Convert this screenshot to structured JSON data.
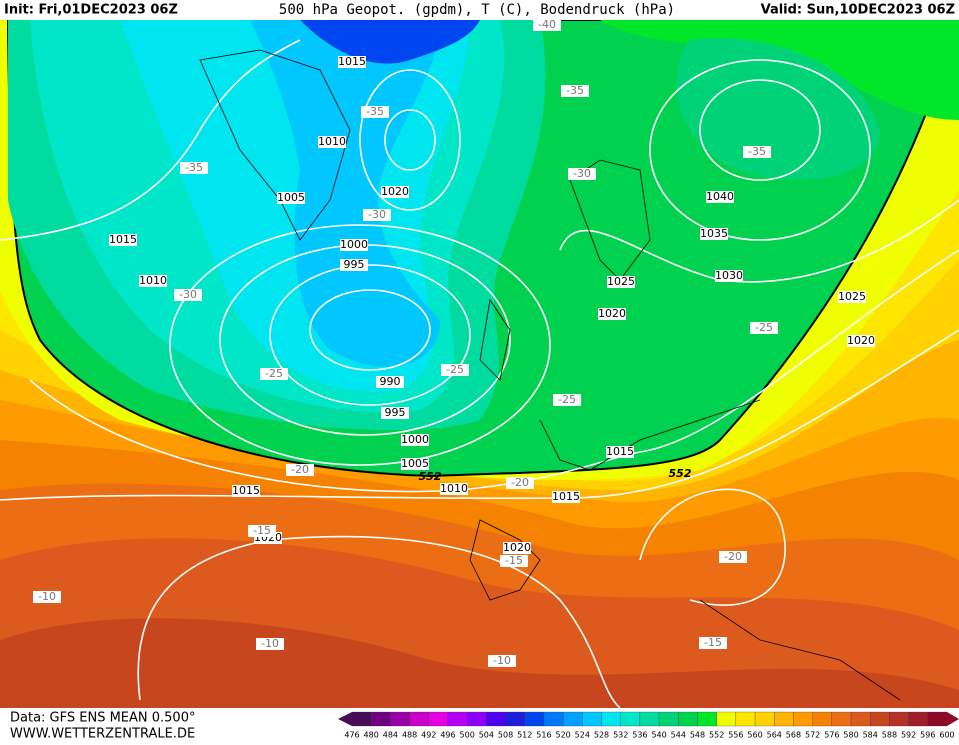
{
  "header": {
    "init": "Init: Fri,01DEC2023 06Z",
    "title": "500 hPa Geopot. (gpdm), T (C), Bodendruck (hPa)",
    "valid": "Valid: Sun,10DEC2023 06Z"
  },
  "footer": {
    "source": "Data: GFS ENS MEAN 0.500°",
    "site": "WWW.WETTERZENTRALE.DE"
  },
  "map": {
    "isobar_labels": [
      "1015",
      "1010",
      "1020",
      "1005",
      "1015",
      "1000",
      "995",
      "1010",
      "990",
      "995",
      "1000",
      "1005",
      "1010",
      "1015",
      "1015",
      "1020",
      "1020",
      "1015",
      "1020",
      "1025",
      "1030",
      "1035",
      "1040",
      "1025",
      "1020"
    ],
    "temperature_labels": [
      "-40",
      "-35",
      "-35",
      "-35",
      "-35",
      "-30",
      "-30",
      "-30",
      "-25",
      "-25",
      "-25",
      "-25",
      "-20",
      "-20",
      "-15",
      "-15",
      "-20",
      "-10",
      "-10",
      "-10",
      "-15"
    ],
    "geopotential_labels": [
      "552",
      "552"
    ]
  },
  "scale": {
    "labels": [
      476,
      480,
      484,
      488,
      492,
      496,
      500,
      504,
      508,
      512,
      516,
      520,
      524,
      528,
      532,
      536,
      540,
      544,
      548,
      552,
      556,
      560,
      564,
      568,
      572,
      576,
      580,
      584,
      588,
      592,
      596,
      600
    ],
    "colors": [
      "#4a0a5a",
      "#700080",
      "#9a00a8",
      "#c800c8",
      "#e600e6",
      "#b400ff",
      "#8c00ff",
      "#5000f0",
      "#1e1edc",
      "#0046f0",
      "#0078ff",
      "#00a0ff",
      "#00c8ff",
      "#00e6f0",
      "#00e6c8",
      "#00dca0",
      "#00d278",
      "#00d250",
      "#00e628",
      "#f0ff00",
      "#ffe600",
      "#ffd200",
      "#ffb400",
      "#ff9b00",
      "#f58200",
      "#eb6e14",
      "#dc5a1e",
      "#c8461e",
      "#b43228",
      "#a01e28",
      "#8c0a28"
    ]
  }
}
